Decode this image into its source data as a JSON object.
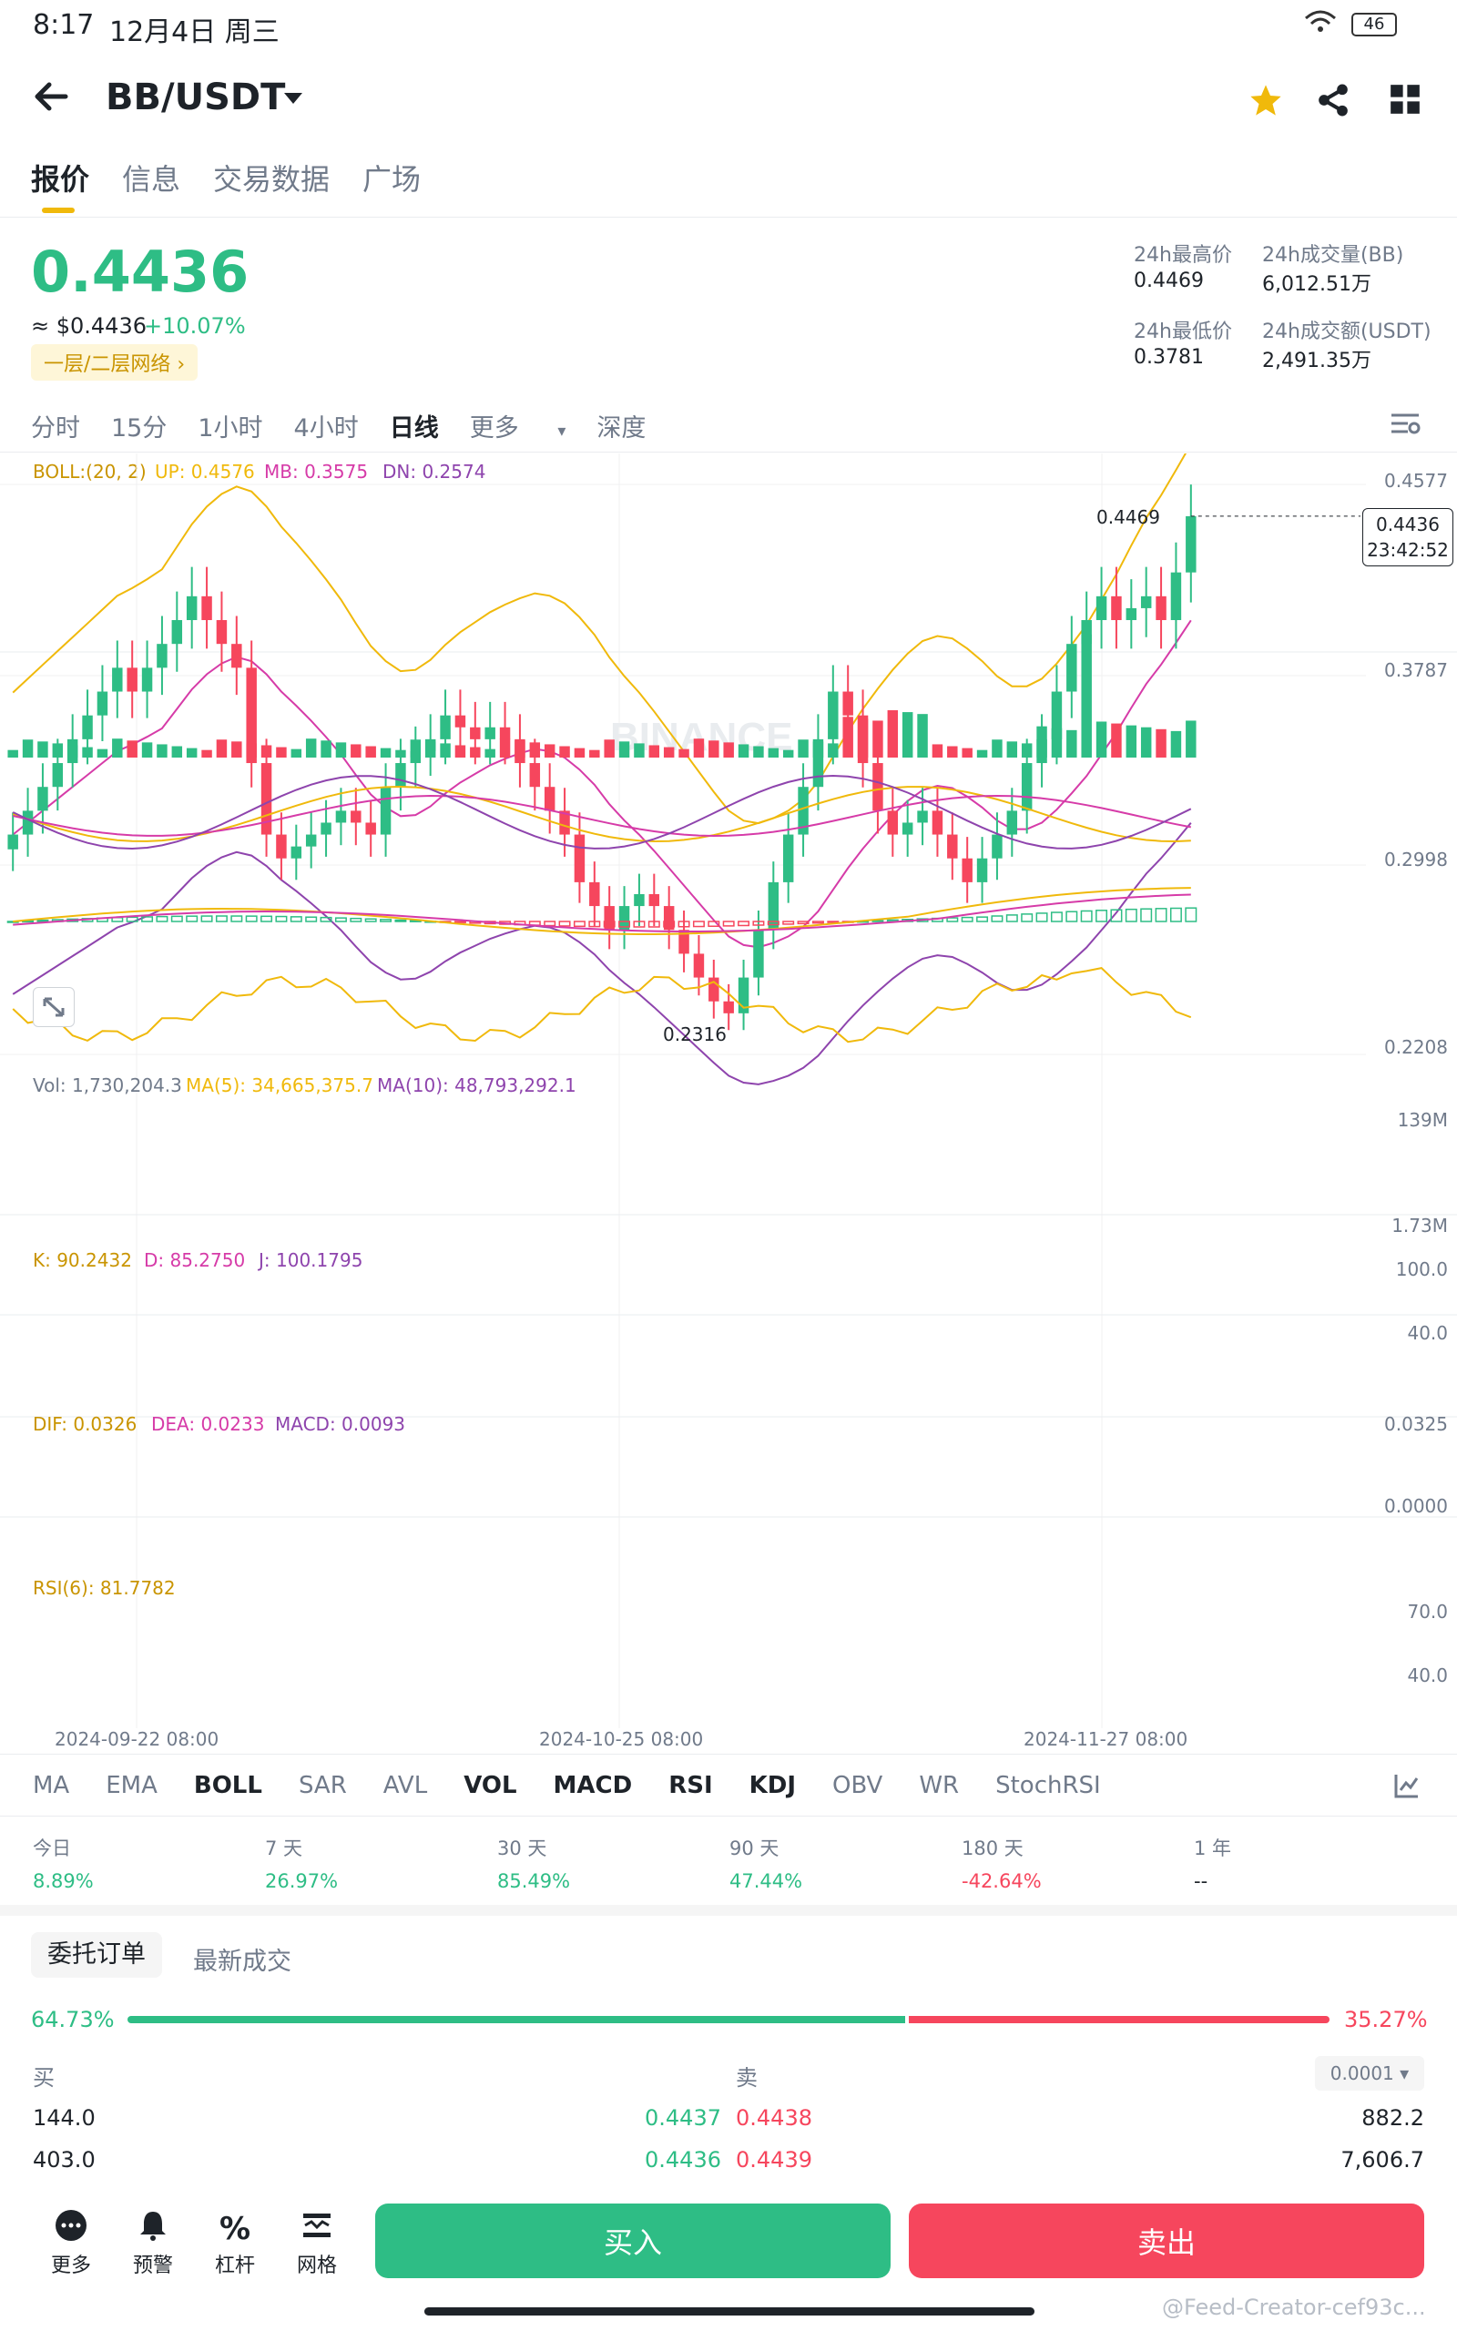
{
  "status_bar": {
    "time": "8:17",
    "date": "12月4日 周三",
    "battery": "46"
  },
  "header": {
    "pair": "BB/USDT"
  },
  "tabs": [
    "报价",
    "信息",
    "交易数据",
    "广场"
  ],
  "price": {
    "last": "0.4436",
    "usd": "≈ $0.4436",
    "change": "+10.07%",
    "network_chip": "一层/二层网络"
  },
  "stats": {
    "high_label": "24h最高价",
    "high": "0.4469",
    "low_label": "24h最低价",
    "low": "0.3781",
    "vol_label": "24h成交量(BB)",
    "vol": "6,012.51万",
    "amt_label": "24h成交额(USDT)",
    "amt": "2,491.35万"
  },
  "timeframes": [
    "分时",
    "15分",
    "1小时",
    "4小时",
    "日线",
    "更多",
    "深度"
  ],
  "boll": {
    "label": "BOLL:(20, 2)",
    "up": "UP: 0.4576",
    "mb": "MB: 0.3575",
    "dn": "DN: 0.2574"
  },
  "main_axis": [
    "0.4577",
    "0.3787",
    "0.2998",
    "0.2208"
  ],
  "annotations": {
    "high": "0.4469",
    "low": "0.2316",
    "current_price": "0.4436",
    "countdown": "23:42:52",
    "watermark": "BINANCE"
  },
  "vol": {
    "label": "Vol: 1,730,204.3",
    "ma5": "MA(5): 34,665,375.7",
    "ma10": "MA(10): 48,793,292.1",
    "axis_top": "139M",
    "axis_bottom": "1.73M"
  },
  "kdj": {
    "k": "K: 90.2432",
    "d": "D: 85.2750",
    "j": "J: 100.1795",
    "axis_top": "100.0",
    "axis_bottom": "40.0"
  },
  "macd": {
    "dif": "DIF: 0.0326",
    "dea": "DEA: 0.0233",
    "macd": "MACD: 0.0093",
    "axis_top": "0.0325",
    "axis_bottom": "0.0000"
  },
  "rsi": {
    "label": "RSI(6): 81.7782",
    "axis_top": "70.0",
    "axis_bottom": "40.0"
  },
  "dates": [
    "2024-09-22 08:00",
    "2024-10-25 08:00",
    "2024-11-27 08:00"
  ],
  "indicator_tabs": [
    "MA",
    "EMA",
    "BOLL",
    "SAR",
    "AVL",
    "VOL",
    "MACD",
    "RSI",
    "KDJ",
    "OBV",
    "WR",
    "StochRSI"
  ],
  "performance": [
    {
      "t": "今日",
      "v": "8.89%"
    },
    {
      "t": "7 天",
      "v": "26.97%"
    },
    {
      "t": "30 天",
      "v": "85.49%"
    },
    {
      "t": "90 天",
      "v": "47.44%"
    },
    {
      "t": "180 天",
      "v": "-42.64%"
    },
    {
      "t": "1 年",
      "v": "--"
    }
  ],
  "orders": {
    "tab_active": "委托订单",
    "tab_other": "最新成交",
    "buy_pct": "64.73%",
    "sell_pct": "35.27%",
    "buy_ratio": 0.6473,
    "buy_label": "买",
    "sell_label": "卖",
    "precision": "0.0001",
    "rows": [
      {
        "buy_qty": "144.0",
        "buy_price": "0.4437",
        "sell_price": "0.4438",
        "sell_qty": "882.2"
      },
      {
        "buy_qty": "403.0",
        "buy_price": "0.4436",
        "sell_price": "0.4439",
        "sell_qty": "7,606.7"
      }
    ]
  },
  "bottom": {
    "more": "更多",
    "alert": "预警",
    "leverage": "杠杆",
    "grid": "网格",
    "buy": "买入",
    "sell": "卖出",
    "watermark": "@Feed-Creator-cef93c..."
  }
}
